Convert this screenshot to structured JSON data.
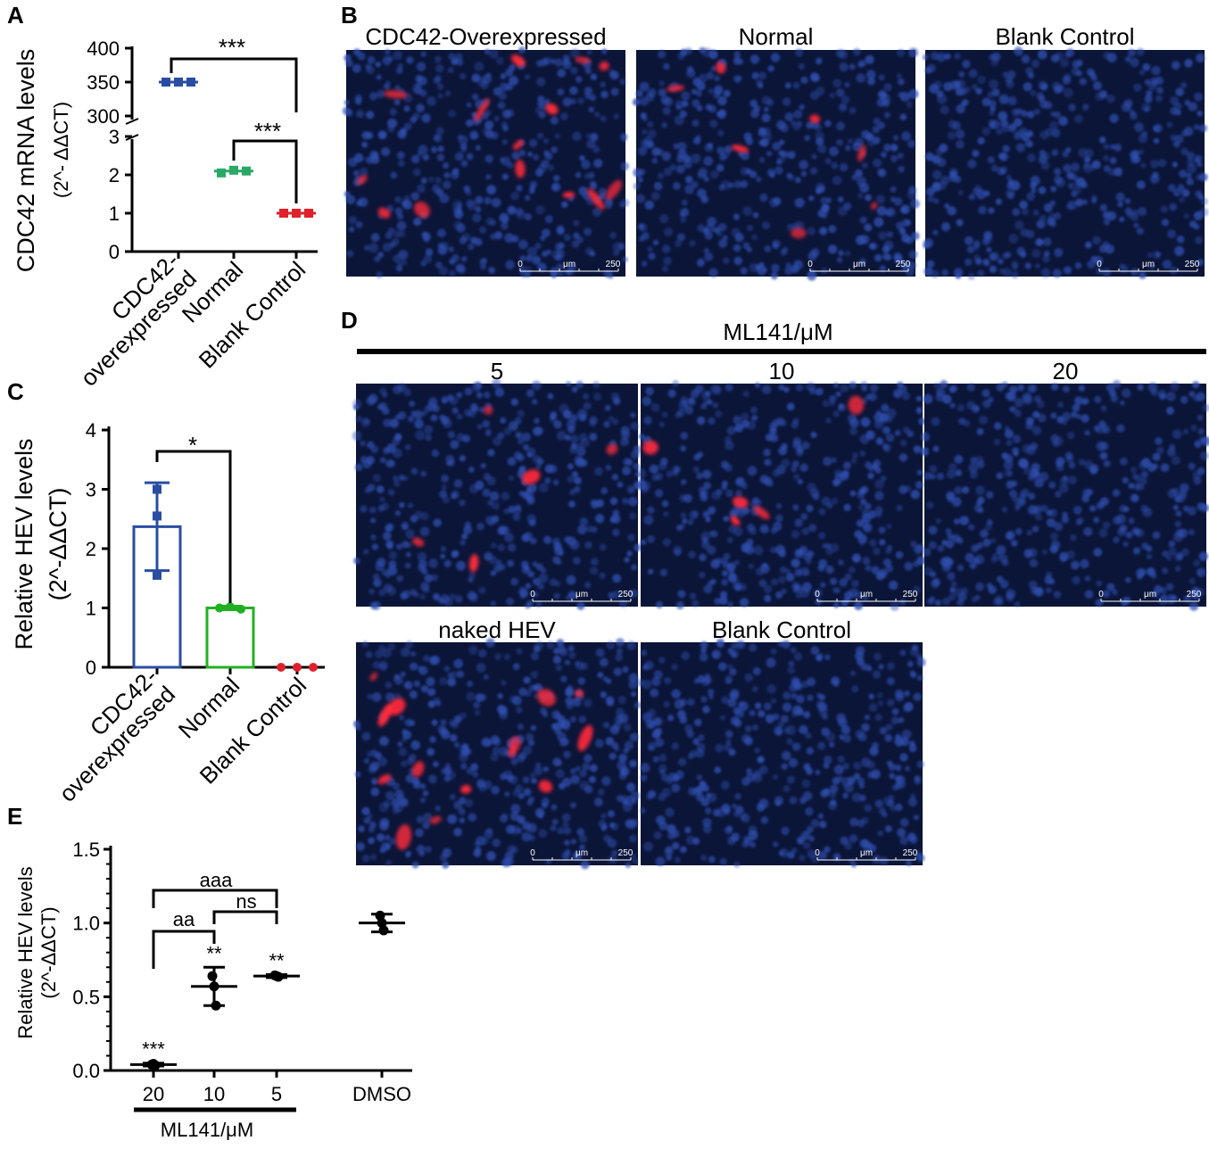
{
  "panel_letters": {
    "a": "A",
    "b": "B",
    "c": "C",
    "d": "D",
    "e": "E"
  },
  "colors": {
    "overexpressed": "#2a4da3",
    "normal": "#2aa866",
    "blank": "#e0202a",
    "panel_c_normal": "#22b022",
    "micro_bg": "#0b1538",
    "nuclei": "#2f4fb0",
    "signal": "#ff2a3a"
  },
  "chart_data": [
    {
      "panel": "A",
      "type": "scatter",
      "ylabel": "CDC42 mRNA levels",
      "ylabel2": "(2^- ΔΔCT)",
      "categories": [
        "CDC42-overexpressed",
        "Normal",
        "Blank Control"
      ],
      "category_lines": [
        [
          "CDC42-",
          "overexpressed"
        ],
        [
          "Normal"
        ],
        [
          "Blank Control"
        ]
      ],
      "axis_break": true,
      "yticks_lower": [
        "0",
        "1",
        "2",
        "3"
      ],
      "yticks_upper": [
        "300",
        "350",
        "400"
      ],
      "ylim_lower": [
        0,
        3.2
      ],
      "ylim_upper": [
        300,
        400
      ],
      "series": [
        {
          "category": "CDC42-overexpressed",
          "values": [
            350,
            350,
            350
          ],
          "mean": 350
        },
        {
          "category": "Normal",
          "values": [
            2.05,
            2.12,
            2.1
          ],
          "mean": 2.1
        },
        {
          "category": "Blank Control",
          "values": [
            1.0,
            1.0,
            1.0
          ],
          "mean": 1.0
        }
      ],
      "significance": [
        {
          "from": "CDC42-overexpressed",
          "to": "Blank Control",
          "label": "***"
        },
        {
          "from": "Normal",
          "to": "Blank Control",
          "label": "***"
        }
      ]
    },
    {
      "panel": "C",
      "type": "bar",
      "ylabel": "Relative HEV levels",
      "ylabel2": "(2^-ΔΔCT)",
      "categories": [
        "CDC42-overexpressed",
        "Normal",
        "Blank Control"
      ],
      "category_lines": [
        [
          "CDC42-",
          "overexpressed"
        ],
        [
          "Normal"
        ],
        [
          "Blank Control"
        ]
      ],
      "yticks": [
        "0",
        "1",
        "2",
        "3",
        "4"
      ],
      "ylim": [
        0,
        4
      ],
      "series": [
        {
          "category": "CDC42-overexpressed",
          "mean": 2.37,
          "sd": 0.74,
          "points": [
            3.0,
            2.55,
            1.55
          ]
        },
        {
          "category": "Normal",
          "mean": 1.0,
          "sd": 0.03,
          "points": [
            1.0,
            1.02,
            0.98
          ]
        },
        {
          "category": "Blank Control",
          "mean": 0.0,
          "sd": 0.0,
          "points": [
            0.0,
            0.0,
            0.0
          ]
        }
      ],
      "significance": [
        {
          "from": "CDC42-overexpressed",
          "to": "Normal",
          "label": "*"
        }
      ]
    },
    {
      "panel": "E",
      "type": "scatter",
      "ylabel": "Relative HEV levels",
      "ylabel2": "(2^-ΔΔCT)",
      "xlabel": "ML141/μM",
      "categories": [
        "20",
        "10",
        "5",
        "DMSO"
      ],
      "yticks": [
        "0.0",
        "0.5",
        "1.0",
        "1.5"
      ],
      "ylim": [
        0,
        1.5
      ],
      "series": [
        {
          "category": "20",
          "mean": 0.04,
          "sd": 0.01,
          "points": [
            0.04,
            0.045,
            0.035
          ],
          "label": "***"
        },
        {
          "category": "10",
          "mean": 0.57,
          "sd": 0.13,
          "points": [
            0.64,
            0.57,
            0.44
          ],
          "label": "**"
        },
        {
          "category": "5",
          "mean": 0.64,
          "sd": 0.01,
          "points": [
            0.645,
            0.64,
            0.635
          ],
          "label": "**"
        },
        {
          "category": "DMSO",
          "mean": 1.0,
          "sd": 0.06,
          "points": [
            1.05,
            1.0,
            0.95
          ],
          "label": ""
        }
      ],
      "significance": [
        {
          "from": "20",
          "to": "5",
          "label": "aaa"
        },
        {
          "from": "20",
          "to": "10",
          "label": "aa"
        },
        {
          "from": "10",
          "to": "5",
          "label": "ns"
        }
      ]
    }
  ],
  "panel_b": {
    "images": [
      {
        "title": "CDC42-Overexpressed",
        "signal": "high"
      },
      {
        "title": "Normal",
        "signal": "medium"
      },
      {
        "title": "Blank Control",
        "signal": "none"
      }
    ],
    "scalebar": {
      "start": "0",
      "unit": "μm",
      "end": "250"
    }
  },
  "panel_d": {
    "header": "ML141/μM",
    "row1": [
      {
        "title": "5",
        "signal": "low"
      },
      {
        "title": "10",
        "signal": "low"
      },
      {
        "title": "20",
        "signal": "none"
      }
    ],
    "row2": [
      {
        "title": "naked HEV",
        "signal": "high"
      },
      {
        "title": "Blank Control",
        "signal": "none"
      }
    ],
    "scalebar": {
      "start": "0",
      "unit": "μm",
      "end": "250"
    }
  }
}
